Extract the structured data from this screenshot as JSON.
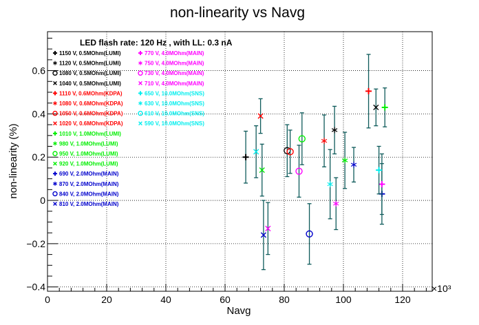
{
  "chart_data": {
    "type": "scatter",
    "title": "non-linearity vs Navg",
    "xlabel": "Navg",
    "ylabel": "non-linearity (%)",
    "x_multiplier_label": "×10³",
    "annotation": "LED flash rate: 120 Hz , with LL: 0.3 nA",
    "xlim": [
      0,
      130000
    ],
    "ylim": [
      -0.42,
      0.78
    ],
    "x_ticks": [
      {
        "value": 0,
        "label": "0"
      },
      {
        "value": 20000,
        "label": "20"
      },
      {
        "value": 40000,
        "label": "40"
      },
      {
        "value": 60000,
        "label": "60"
      },
      {
        "value": 80000,
        "label": "80"
      },
      {
        "value": 100000,
        "label": "100"
      },
      {
        "value": 120000,
        "label": "120"
      }
    ],
    "y_ticks": [
      {
        "value": -0.4,
        "label": "−0.4"
      },
      {
        "value": -0.2,
        "label": "−0.2"
      },
      {
        "value": 0,
        "label": "0"
      },
      {
        "value": 0.2,
        "label": "0.2"
      },
      {
        "value": 0.4,
        "label": "0.4"
      },
      {
        "value": 0.6,
        "label": "0.6"
      }
    ],
    "grid": true,
    "legend_placement": "top-left, two columns",
    "error_bar_color": "#0d5a5a",
    "series": [
      {
        "name": "1150 V, 0.5MOhm(LUMI)",
        "color": "#000000",
        "marker": "+",
        "x": 67000,
        "y": 0.2,
        "err": 0.12
      },
      {
        "name": "1120 V, 0.5MOhm(LUMI)",
        "color": "#000000",
        "marker": "*",
        "x": 97000,
        "y": 0.325,
        "err": 0.11
      },
      {
        "name": "1080 V, 0.5MOhm(LUMI)",
        "color": "#000000",
        "marker": "o",
        "x": 81000,
        "y": 0.23,
        "err": 0.12
      },
      {
        "name": "1040 V, 0.5MOhm(LUMI)",
        "color": "#000000",
        "marker": "x",
        "x": 111000,
        "y": 0.43,
        "err": 0.085
      },
      {
        "name": "1110 V, 0.6MOhm(KDPA)",
        "color": "#ff0000",
        "marker": "+",
        "x": 108500,
        "y": 0.505,
        "err": 0.17
      },
      {
        "name": "1080 V, 0.6MOhm(KDPA)",
        "color": "#ff0000",
        "marker": "*",
        "x": 93500,
        "y": 0.275,
        "err": 0.12
      },
      {
        "name": "1050 V, 0.6MOhm(KDPA)",
        "color": "#ff0000",
        "marker": "o",
        "x": 82000,
        "y": 0.225,
        "err": 0.1
      },
      {
        "name": "1020 V, 0.6MOhm(KDPA)",
        "color": "#ff0000",
        "marker": "x",
        "x": 72000,
        "y": 0.39,
        "err": 0.08
      },
      {
        "name": "1010 V, 1.0MOhm(LUMI)",
        "color": "#00ee00",
        "marker": "+",
        "x": 114000,
        "y": 0.43,
        "err": 0.09
      },
      {
        "name": "980 V, 1.0MOhm(LUMI)",
        "color": "#00ee00",
        "marker": "*",
        "x": 100500,
        "y": 0.185,
        "err": 0.13
      },
      {
        "name": "950 V, 1.0MOhm(LUMI)",
        "color": "#00ee00",
        "marker": "o",
        "x": 86000,
        "y": 0.285,
        "err": 0.12
      },
      {
        "name": "920 V, 1.0MOhm(LUMI)",
        "color": "#00ee00",
        "marker": "x",
        "x": 72500,
        "y": 0.14,
        "err": 0.12
      },
      {
        "name": "690 V, 2.0MOhm(MAIN)",
        "color": "#0000cc",
        "marker": "+",
        "x": 113000,
        "y": 0.03,
        "err": 0.14
      },
      {
        "name": "870 V, 2.0MOhm(MAIN)",
        "color": "#0000cc",
        "marker": "*",
        "x": 103500,
        "y": 0.165,
        "err": 0.08
      },
      {
        "name": "840 V, 2.0MOhm(MAIN)",
        "color": "#0000cc",
        "marker": "o",
        "x": 88500,
        "y": -0.155,
        "err": 0.14
      },
      {
        "name": "810 V, 2.0MOhm(MAIN)",
        "color": "#0000cc",
        "marker": "x",
        "x": 73000,
        "y": -0.16,
        "err": 0.16
      },
      {
        "name": "770 V, 4.0MOhm(MAIN)",
        "color": "#ff00ff",
        "marker": "+",
        "x": 113000,
        "y": 0.075,
        "err": 0.14
      },
      {
        "name": "750 V, 4.0MOhm(MAIN)",
        "color": "#ff00ff",
        "marker": "*",
        "x": 97500,
        "y": -0.015,
        "err": 0.12
      },
      {
        "name": "730 V, 4.0MOhm(MAIN)",
        "color": "#ff00ff",
        "marker": "o",
        "x": 85000,
        "y": 0.135,
        "err": 0.12
      },
      {
        "name": "710 V, 4.0MOhm(MAIN)",
        "color": "#ff00ff",
        "marker": "x",
        "x": 74500,
        "y": -0.13,
        "err": 0.12
      },
      {
        "name": "650 V, 10.0MOhm(SNS)",
        "color": "#00eeee",
        "marker": "+",
        "x": 112000,
        "y": 0.14,
        "err": 0.11
      },
      {
        "name": "630 V, 10.0MOhm(SNS)",
        "color": "#00eeee",
        "marker": "*",
        "x": 95500,
        "y": 0.075,
        "err": 0.16
      },
      {
        "name": "610 V, 10.0MOhm(SNS)",
        "color": "#00eeee",
        "marker": "o",
        "x": 0,
        "y": 0,
        "err": 0,
        "hidden": true
      },
      {
        "name": "590 V, 10.0MOhm(SNS)",
        "color": "#00eeee",
        "marker": "x",
        "x": 70500,
        "y": 0.225,
        "err": 0.12
      }
    ],
    "legend_columns": [
      [
        0,
        1,
        2,
        3,
        4,
        5,
        6,
        7,
        8,
        9,
        10,
        11,
        12,
        13,
        14,
        15
      ],
      [
        16,
        17,
        18,
        19,
        20,
        21,
        22,
        23
      ]
    ]
  }
}
